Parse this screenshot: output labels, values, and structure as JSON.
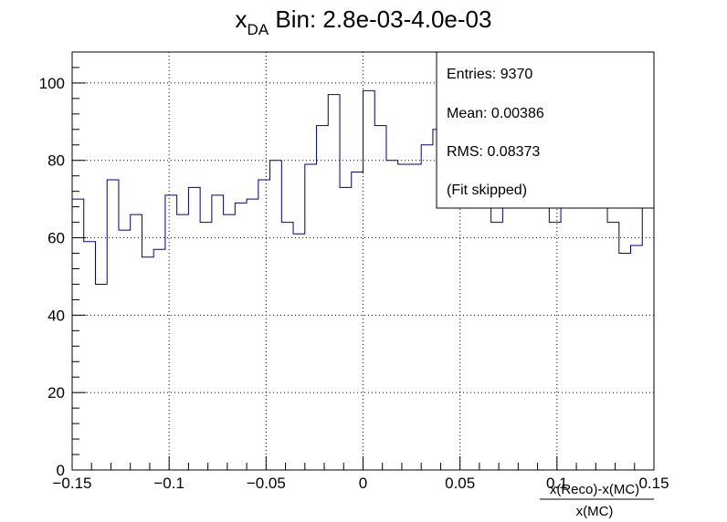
{
  "chart_data": {
    "type": "histogram",
    "title": {
      "variable": "x",
      "subscript": "DA",
      "rest": " Bin: 2.8e-03-4.0e-03"
    },
    "xlabel_numerator": "x(Reco)-x(MC)",
    "xlabel_denominator": "x(MC)",
    "ylabel": "",
    "xlim": [
      -0.15,
      0.15
    ],
    "ylim": [
      0,
      108
    ],
    "x_ticks": [
      -0.15,
      -0.1,
      -0.05,
      0,
      0.05,
      0.1,
      0.15
    ],
    "x_tick_labels": [
      "−0.15",
      "−0.1",
      "−0.05",
      "0",
      "0.05",
      "0.1",
      "0.15"
    ],
    "y_ticks": [
      0,
      20,
      40,
      60,
      80,
      100
    ],
    "y_tick_labels": [
      "0",
      "20",
      "40",
      "60",
      "80",
      "100"
    ],
    "grid": true,
    "line_color": "#000080",
    "bin_edges_start": -0.15,
    "bin_width": 0.006,
    "values": [
      70,
      59,
      48,
      75,
      62,
      66,
      55,
      57,
      71,
      66,
      73,
      64,
      71,
      66,
      69,
      70,
      75,
      80,
      64,
      61,
      79,
      89,
      97,
      73,
      77,
      98,
      89,
      80,
      79,
      79,
      84,
      88,
      88,
      88,
      86,
      87,
      64,
      68,
      70,
      71,
      72,
      64,
      70,
      72,
      70,
      72,
      64,
      56,
      58,
      70,
      62
    ],
    "stats": {
      "entries": "Entries: 9370",
      "mean": "Mean: 0.00386",
      "rms": "RMS: 0.08373",
      "note": "(Fit skipped)"
    }
  }
}
